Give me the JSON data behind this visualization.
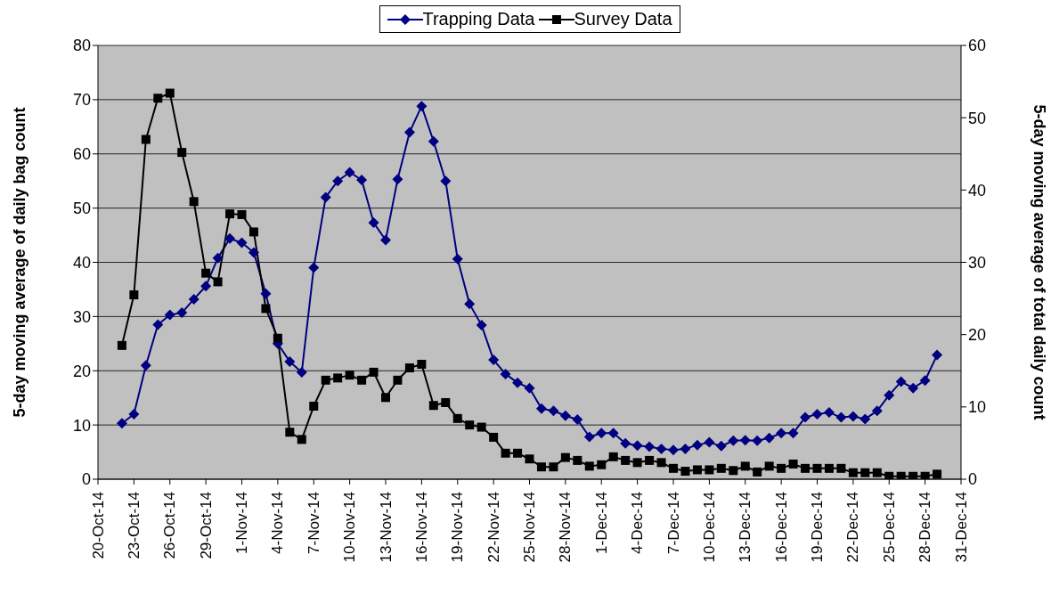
{
  "chart_data": {
    "type": "line",
    "ylabel": "5-day moving average of daily bag count",
    "y2label": "5-day moving average of total daily count",
    "x": [
      "--10-22",
      "--10-23",
      "--10-24",
      "--10-25",
      "--10-26",
      "--10-27",
      "--10-28",
      "--10-29",
      "--10-30",
      "--10-31",
      "--11-01",
      "--11-02",
      "--11-03",
      "--11-04",
      "--11-05",
      "--11-06",
      "--11-07",
      "--11-08",
      "--11-09",
      "--11-10",
      "--11-11",
      "--11-12",
      "--11-13",
      "--11-14",
      "--11-15",
      "--11-16",
      "--11-17",
      "--11-18",
      "--11-19",
      "--11-20",
      "--11-21",
      "--11-22",
      "--11-23",
      "--11-24",
      "--11-25",
      "--11-26",
      "--11-27",
      "--11-28",
      "--11-29",
      "--11-30",
      "--12-01",
      "--12-02",
      "--12-03",
      "--12-04",
      "--12-05",
      "--12-06",
      "--12-07",
      "--12-08",
      "--12-09",
      "--12-10",
      "--12-11",
      "--12-12",
      "--12-13",
      "--12-14",
      "--12-15",
      "--12-16",
      "--12-17",
      "--12-18",
      "--12-19",
      "--12-20",
      "--12-21",
      "--12-22",
      "--12-23",
      "--12-24",
      "--12-25",
      "--12-26",
      "--12-27",
      "--12-28",
      "--12-29"
    ],
    "series": [
      {
        "name": "Trapping Data",
        "color": "#000080",
        "marker": "diamond",
        "values": [
          10.3,
          12,
          21,
          28.5,
          30.3,
          30.7,
          33.2,
          35.6,
          40.8,
          44.4,
          43.6,
          41.8,
          34.2,
          25,
          21.7,
          19.7,
          39,
          52,
          55,
          56.6,
          55.2,
          47.3,
          44.1,
          55.3,
          64,
          68.8,
          62.3,
          55,
          40.6,
          32.3,
          28.4,
          22,
          19.4,
          17.8,
          16.8,
          13,
          12.6,
          11.7,
          11,
          7.8,
          8.5,
          8.5,
          6.6,
          6.2,
          6,
          5.6,
          5.4,
          5.6,
          6.3,
          6.8,
          6.1,
          7.1,
          7.2,
          7.1,
          7.6,
          8.5,
          8.5,
          11.4,
          12,
          12.3,
          11.4,
          11.6,
          11.1,
          12.6,
          15.5,
          18,
          16.8,
          18.2,
          22.9
        ]
      },
      {
        "name": "Survey Data",
        "color": "#000000",
        "marker": "square",
        "axis": "y2",
        "values": [
          18.5,
          25.5,
          47,
          52.7,
          53.4,
          45.2,
          38.4,
          28.5,
          27.3,
          36.7,
          36.6,
          34.2,
          23.6,
          19.5,
          6.5,
          5.5,
          10.1,
          13.7,
          14,
          14.4,
          13.7,
          14.8,
          11.3,
          13.7,
          15.4,
          15.9,
          10.2,
          10.6,
          8.4,
          7.5,
          7.2,
          5.8,
          3.6,
          3.6,
          2.8,
          1.7,
          1.7,
          3,
          2.6,
          1.8,
          2,
          3.1,
          2.6,
          2.3,
          2.6,
          2.3,
          1.5,
          1.1,
          1.3,
          1.3,
          1.5,
          1.2,
          1.8,
          1,
          1.8,
          1.5,
          2.1,
          1.5,
          1.5,
          1.5,
          1.5,
          0.9,
          0.9,
          0.9,
          0.4,
          0.4,
          0.4,
          0.4,
          0.7
        ]
      }
    ],
    "xlim": [
      "--10-20",
      "--12-31"
    ],
    "xticks": [
      {
        "value": "--10-20",
        "label": "20-Oct-14"
      },
      {
        "value": "--10-23",
        "label": "23-Oct-14"
      },
      {
        "value": "--10-26",
        "label": "26-Oct-14"
      },
      {
        "value": "--10-29",
        "label": "29-Oct-14"
      },
      {
        "value": "--11-01",
        "label": "1-Nov-14"
      },
      {
        "value": "--11-04",
        "label": "4-Nov-14"
      },
      {
        "value": "--11-07",
        "label": "7-Nov-14"
      },
      {
        "value": "--11-10",
        "label": "10-Nov-14"
      },
      {
        "value": "--11-13",
        "label": "13-Nov-14"
      },
      {
        "value": "--11-16",
        "label": "16-Nov-14"
      },
      {
        "value": "--11-19",
        "label": "19-Nov-14"
      },
      {
        "value": "--11-22",
        "label": "22-Nov-14"
      },
      {
        "value": "--11-25",
        "label": "25-Nov-14"
      },
      {
        "value": "--11-28",
        "label": "28-Nov-14"
      },
      {
        "value": "--12-01",
        "label": "1-Dec-14"
      },
      {
        "value": "--12-04",
        "label": "4-Dec-14"
      },
      {
        "value": "--12-07",
        "label": "7-Dec-14"
      },
      {
        "value": "--12-10",
        "label": "10-Dec-14"
      },
      {
        "value": "--12-13",
        "label": "13-Dec-14"
      },
      {
        "value": "--12-16",
        "label": "16-Dec-14"
      },
      {
        "value": "--12-19",
        "label": "19-Dec-14"
      },
      {
        "value": "--12-22",
        "label": "22-Dec-14"
      },
      {
        "value": "--12-25",
        "label": "25-Dec-14"
      },
      {
        "value": "--12-28",
        "label": "28-Dec-14"
      },
      {
        "value": "--12-31",
        "label": "31-Dec-14"
      }
    ],
    "ylim": [
      0,
      80
    ],
    "yticks": [
      0,
      10,
      20,
      30,
      40,
      50,
      60,
      70,
      80
    ],
    "y2lim": [
      0,
      60
    ],
    "y2ticks": [
      0,
      10,
      20,
      30,
      40,
      50,
      60
    ],
    "grid": "y",
    "legend": "top",
    "line_style": "solid"
  }
}
